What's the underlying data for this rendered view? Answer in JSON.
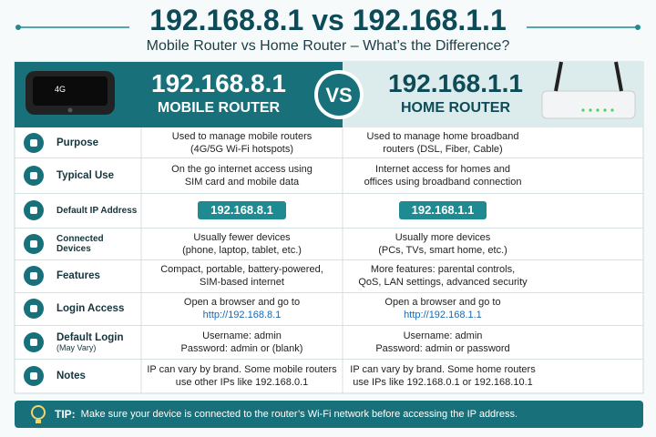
{
  "title": "192.168.8.1 vs 192.168.1.1",
  "subtitle": "Mobile Router vs Home Router – What’s the Difference?",
  "header": {
    "device_label": "4G",
    "left": {
      "ip": "192.168.8.1",
      "name": "MOBILE ROUTER"
    },
    "vs": "VS",
    "right": {
      "ip": "192.168.1.1",
      "name": "HOME ROUTER"
    }
  },
  "rows": [
    {
      "label": "Purpose",
      "left": [
        "Used to manage mobile routers",
        "(4G/5G Wi-Fi hotspots)"
      ],
      "right": [
        "Used to manage home broadband",
        "routers (DSL, Fiber, Cable)"
      ]
    },
    {
      "label": "Typical Use",
      "left": [
        "On the go internet access using",
        "SIM card and mobile data"
      ],
      "right": [
        "Internet access for homes and",
        "offices using broadband connection"
      ]
    },
    {
      "label": "Default IP Address",
      "left": [
        "192.168.8.1"
      ],
      "right": [
        "192.168.1.1"
      ]
    },
    {
      "label": "Connected Devices",
      "left": [
        "Usually fewer devices",
        "(phone, laptop, tablet, etc.)"
      ],
      "right": [
        "Usually more devices",
        "(PCs, TVs, smart home, etc.)"
      ]
    },
    {
      "label": "Features",
      "left": [
        "Compact, portable, battery-powered,",
        "SIM-based internet"
      ],
      "right": [
        "More features: parental controls,",
        "QoS, LAN settings, advanced security"
      ]
    },
    {
      "label": "Login Access",
      "left": [
        "Open a browser and go to",
        "http://192.168.8.1"
      ],
      "right": [
        "Open a browser and go to",
        "http://192.168.1.1"
      ]
    },
    {
      "label": "Default Login",
      "sublabel": "(May Vary)",
      "left": [
        "Username: admin",
        "Password: admin or (blank)"
      ],
      "right": [
        "Username: admin",
        "Password: admin or password"
      ]
    },
    {
      "label": "Notes",
      "left": [
        "IP can vary by brand. Some mobile routers",
        "use other IPs like 192.168.0.1"
      ],
      "right": [
        "IP can vary by brand. Some home routers",
        "use IPs like 192.168.0.1 or 192.168.10.1"
      ]
    }
  ],
  "tip": {
    "label": "TIP:",
    "text": "Make sure your device is connected to the router’s Wi-Fi network before accessing the IP address."
  }
}
